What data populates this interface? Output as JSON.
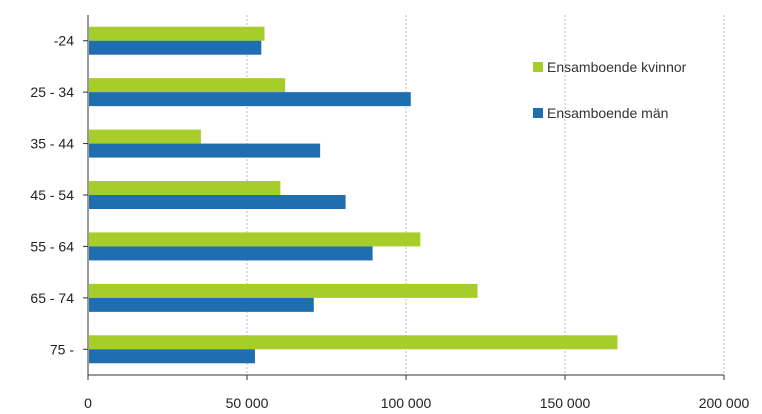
{
  "chart_data": {
    "type": "bar",
    "orientation": "horizontal",
    "categories": [
      "-24",
      "25 - 34",
      "35 - 44",
      "45 - 54",
      "55 - 64",
      "65 - 74",
      "75 -"
    ],
    "series": [
      {
        "name": "Ensamboende kvinnor",
        "color": "#a6cd2a",
        "values": [
          55500,
          62000,
          35500,
          60500,
          104500,
          122500,
          166500
        ]
      },
      {
        "name": "Ensamboende män",
        "color": "#1f6eb0",
        "values": [
          54500,
          101500,
          73000,
          81000,
          89500,
          71000,
          52500
        ]
      }
    ],
    "xlim": [
      0,
      200000
    ],
    "xticks": [
      0,
      50000,
      100000,
      150000,
      200000
    ],
    "xtick_labels": [
      "0",
      "50 000",
      "100 000",
      "150 000",
      "200 000"
    ],
    "grid": "vertical dotted",
    "legend": {
      "position": "top-right",
      "entries": [
        "Ensamboende kvinnor",
        "Ensamboende män"
      ]
    },
    "title": "",
    "xlabel": "",
    "ylabel": ""
  }
}
